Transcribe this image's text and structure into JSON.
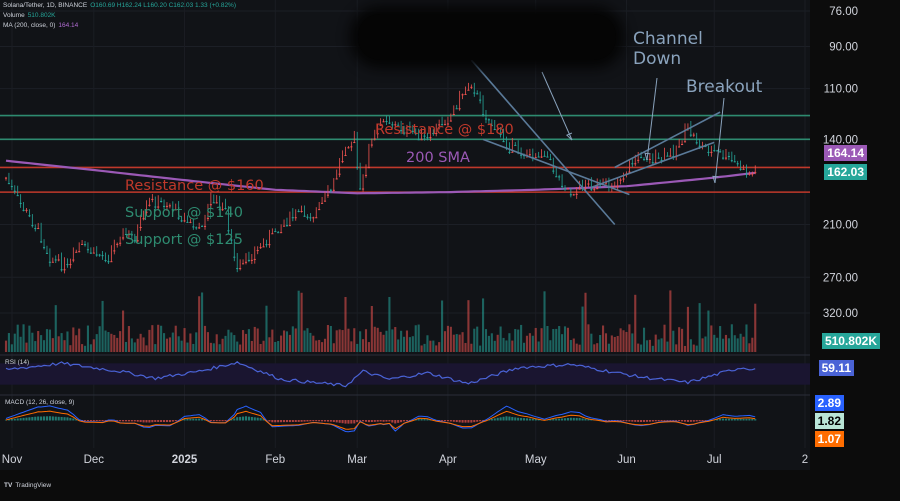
{
  "header": {
    "symbol": "Solana/Tether, 1D, BINANCE",
    "ohlc": "O160.69  H162.24  L160.20  C162.03  1.33 (+0.82%)",
    "volume_label": "Volume",
    "volume_value": "510.802K",
    "ma_label": "MA (200, close, 0)",
    "ma_value": "164.14"
  },
  "footer": {
    "logo": "TV",
    "brand": "TradingView"
  },
  "colors": {
    "up": "#26a69a",
    "down": "#ef5350",
    "resistance": "#c0392b",
    "support": "#2e8b70",
    "sma": "#9b59b6",
    "channel": "#5a7a99",
    "rsi": "#4a63d6",
    "macd": "#2962ff",
    "signal": "#ff6d00"
  },
  "price_badges": {
    "sma": "164.14",
    "close": "162.03",
    "volume": "510.802K",
    "rsi": "59.11",
    "macd_blue": "2.89",
    "macd_green": "1.82",
    "macd_orange": "1.07"
  },
  "chart_data": {
    "type": "candlestick",
    "y_scale": "log",
    "y_ticks": [
      "320.00",
      "270.00",
      "210.00",
      "140.00",
      "110.00",
      "90.00",
      "76.00"
    ],
    "x_ticks": [
      "Nov",
      "Dec",
      "2025",
      "Feb",
      "Mar",
      "Apr",
      "May",
      "Jun",
      "Jul",
      "2"
    ],
    "annotations": {
      "resistance_180": "Resistance @ $180",
      "resistance_160": "Resistance @ $160",
      "support_140": "Support @ $140",
      "support_125": "Support @ $125",
      "sma_label": "200 SMA",
      "channel_down_1": "Channel",
      "channel_down_2": "Down",
      "breakout": "Breakout"
    },
    "levels": {
      "resistance_180": 180,
      "resistance_160": 160,
      "support_140": 140,
      "support_125": 125
    },
    "price_anchors": [
      [
        "2024-11-01",
        168
      ],
      [
        "2024-11-06",
        190
      ],
      [
        "2024-11-12",
        215
      ],
      [
        "2024-11-16",
        245
      ],
      [
        "2024-11-22",
        258
      ],
      [
        "2024-11-26",
        232
      ],
      [
        "2024-12-01",
        240
      ],
      [
        "2024-12-06",
        245
      ],
      [
        "2024-12-10",
        218
      ],
      [
        "2024-12-15",
        222
      ],
      [
        "2024-12-20",
        188
      ],
      [
        "2024-12-27",
        190
      ],
      [
        "2025-01-01",
        205
      ],
      [
        "2025-01-06",
        215
      ],
      [
        "2025-01-10",
        185
      ],
      [
        "2025-01-15",
        195
      ],
      [
        "2025-01-19",
        262
      ],
      [
        "2025-01-23",
        245
      ],
      [
        "2025-01-27",
        232
      ],
      [
        "2025-02-01",
        215
      ],
      [
        "2025-02-03",
        210
      ],
      [
        "2025-02-09",
        198
      ],
      [
        "2025-02-14",
        200
      ],
      [
        "2025-02-20",
        178
      ],
      [
        "2025-02-25",
        142
      ],
      [
        "2025-02-28",
        140
      ],
      [
        "2025-03-02",
        180
      ],
      [
        "2025-03-05",
        145
      ],
      [
        "2025-03-10",
        125
      ],
      [
        "2025-03-15",
        132
      ],
      [
        "2025-03-20",
        135
      ],
      [
        "2025-03-25",
        140
      ],
      [
        "2025-03-28",
        132
      ],
      [
        "2025-04-02",
        124
      ],
      [
        "2025-04-06",
        112
      ],
      [
        "2025-04-09",
        106
      ],
      [
        "2025-04-13",
        122
      ],
      [
        "2025-04-18",
        135
      ],
      [
        "2025-04-22",
        145
      ],
      [
        "2025-04-28",
        150
      ],
      [
        "2025-05-04",
        148
      ],
      [
        "2025-05-08",
        165
      ],
      [
        "2025-05-13",
        180
      ],
      [
        "2025-05-18",
        172
      ],
      [
        "2025-05-23",
        176
      ],
      [
        "2025-05-28",
        172
      ],
      [
        "2025-06-02",
        158
      ],
      [
        "2025-06-06",
        150
      ],
      [
        "2025-06-12",
        155
      ],
      [
        "2025-06-17",
        148
      ],
      [
        "2025-06-22",
        133
      ],
      [
        "2025-06-26",
        143
      ],
      [
        "2025-07-01",
        148
      ],
      [
        "2025-07-05",
        152
      ],
      [
        "2025-07-09",
        158
      ],
      [
        "2025-07-13",
        165
      ],
      [
        "2025-07-15",
        162
      ]
    ],
    "sma_anchors": [
      [
        "2024-11-01",
        155
      ],
      [
        "2024-12-01",
        162
      ],
      [
        "2025-01-01",
        170
      ],
      [
        "2025-02-01",
        178
      ],
      [
        "2025-03-01",
        181
      ],
      [
        "2025-04-01",
        180
      ],
      [
        "2025-05-01",
        178
      ],
      [
        "2025-06-01",
        175
      ],
      [
        "2025-07-01",
        168
      ],
      [
        "2025-07-15",
        164.14
      ]
    ],
    "rsi_anchors": [
      [
        "2024-11-01",
        58
      ],
      [
        "2024-11-20",
        70
      ],
      [
        "2024-12-10",
        55
      ],
      [
        "2024-12-22",
        42
      ],
      [
        "2025-01-06",
        55
      ],
      [
        "2025-01-19",
        72
      ],
      [
        "2025-02-03",
        40
      ],
      [
        "2025-02-25",
        28
      ],
      [
        "2025-03-03",
        55
      ],
      [
        "2025-03-12",
        40
      ],
      [
        "2025-03-25",
        52
      ],
      [
        "2025-04-08",
        32
      ],
      [
        "2025-04-25",
        62
      ],
      [
        "2025-05-13",
        68
      ],
      [
        "2025-06-05",
        45
      ],
      [
        "2025-06-22",
        34
      ],
      [
        "2025-07-10",
        62
      ],
      [
        "2025-07-15",
        59.11
      ]
    ]
  }
}
